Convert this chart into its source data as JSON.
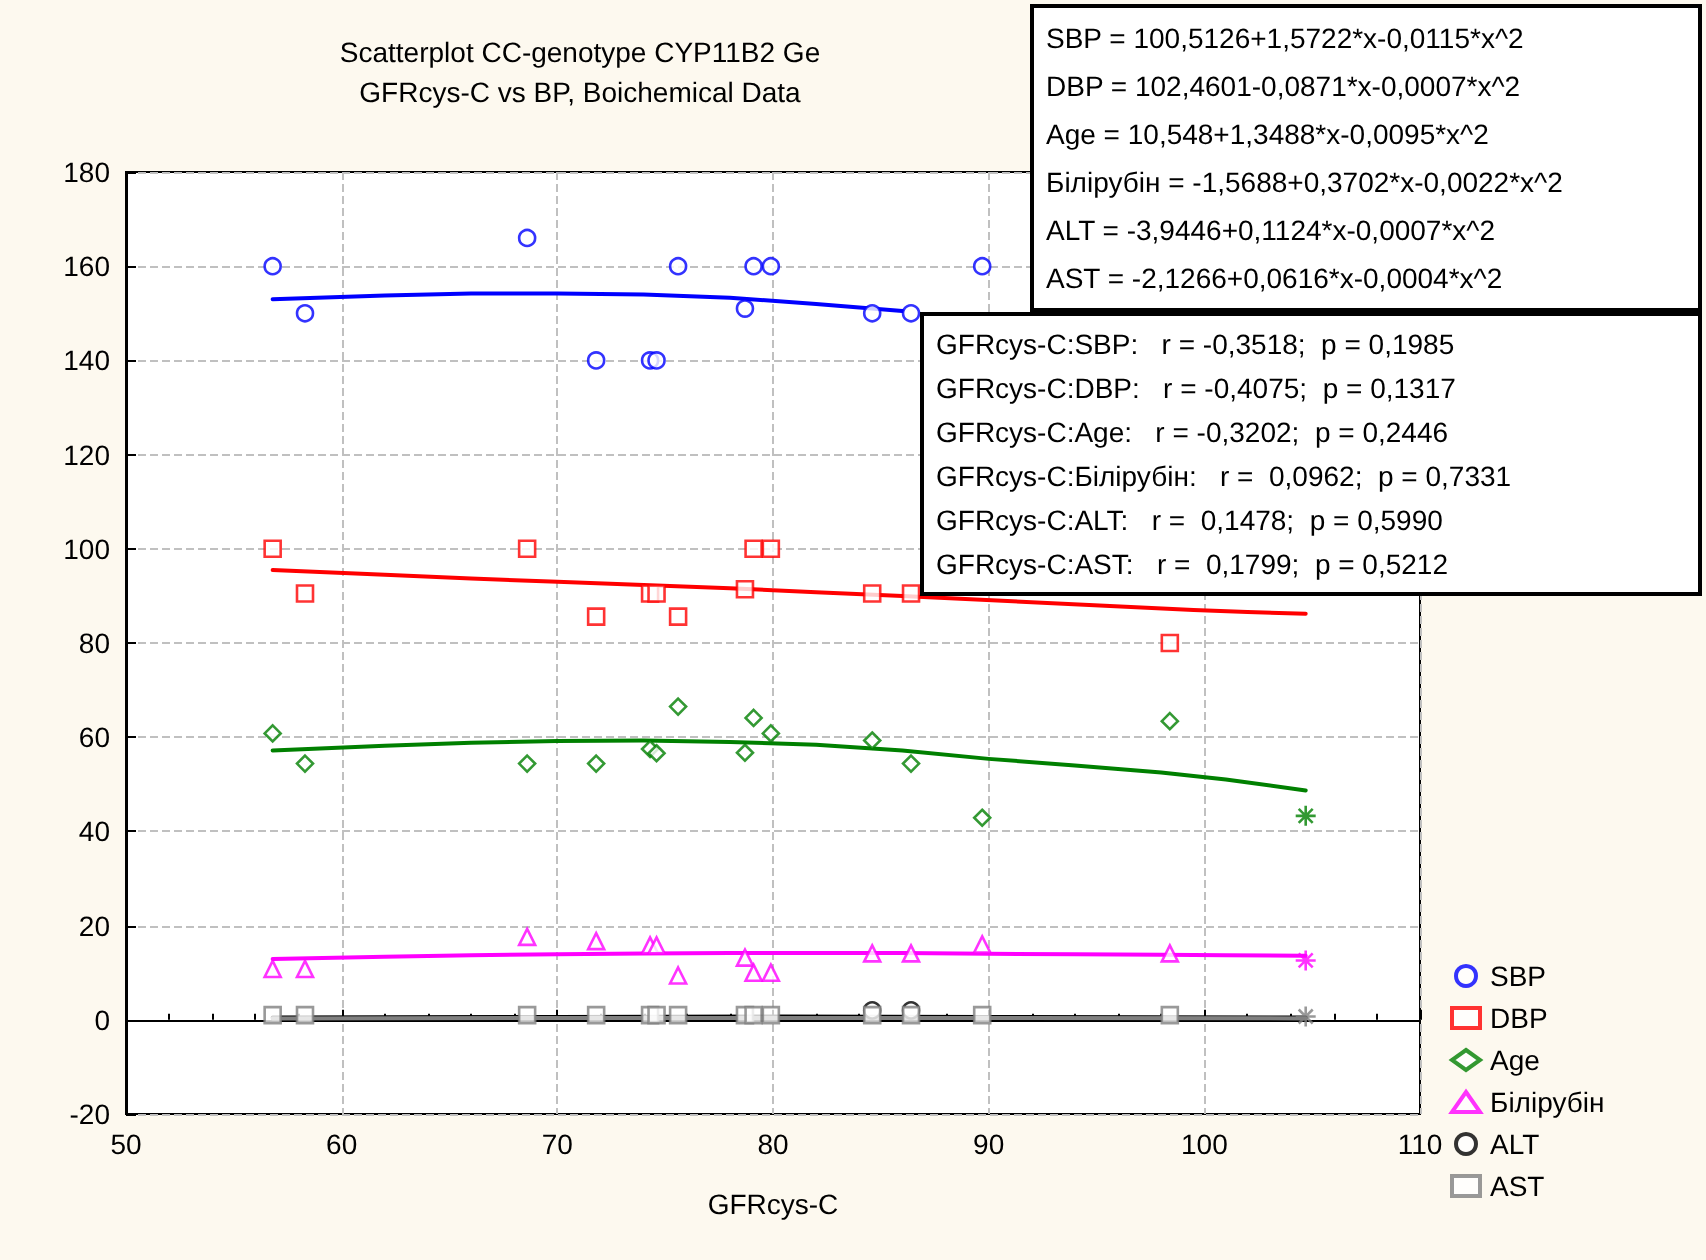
{
  "chart_data": {
    "type": "scatter",
    "title": "Scatterplot CC-genotype CYP11B2 Ge",
    "subtitle": "GFRcys-C vs BP, Boichemical Data",
    "xlabel": "GFRcys-C",
    "xlim": [
      50,
      110
    ],
    "xticks": [
      50,
      60,
      70,
      80,
      90,
      100,
      110
    ],
    "ylim": [
      -20,
      180
    ],
    "yticks": [
      -20,
      0,
      20,
      40,
      60,
      80,
      100,
      120,
      140,
      160,
      180
    ],
    "grid": true,
    "legend": "bottom right",
    "annotations": [
      "SBP = 100,5126+1,5722*x-0,0115*x^2",
      "DBP = 102,4601-0,0871*x-0,0007*x^2",
      "Age = 10,548+1,3488*x-0,0095*x^2",
      "Білірубін = -1,5688+0,3702*x-0,0022*x^2",
      "ALT = -3,9446+0,1124*x-0,0007*x^2",
      "AST = -2,1266+0,0616*x-0,0004*x^2",
      "GFRcys-C:SBP:   r = -0,3518;  p = 0,1985",
      "GFRcys-C:DBP:   r = -0,4075;  p = 0,1317",
      "GFRcys-C:Age:   r = -0,3202;  p = 0,2446",
      "GFRcys-C:Білірубін:   r =  0,0962;  p = 0,7331",
      "GFRcys-C:ALT:   r =  0,1478;  p = 0,5990",
      "GFRcys-C:AST:   r =  0,1799;  p = 0,5212"
    ],
    "series": [
      {
        "name": "SBP",
        "color": "#0000ff",
        "marker": "circle",
        "x": [
          56.8,
          58.3,
          68.6,
          71.8,
          74.3,
          74.6,
          75.6,
          78.7,
          79.1,
          79.9,
          84.6,
          86.4,
          89.7
        ],
        "values": [
          160,
          150,
          166,
          140,
          140,
          140,
          160,
          151,
          160,
          160,
          150,
          150,
          160
        ]
      },
      {
        "name": "DBP",
        "color": "#ff0000",
        "marker": "square",
        "x": [
          56.8,
          58.3,
          68.6,
          71.8,
          74.3,
          74.6,
          75.6,
          78.7,
          79.1,
          79.9,
          84.6,
          86.4,
          98.4
        ],
        "values": [
          100,
          90.5,
          100,
          85.6,
          90.5,
          90.5,
          85.6,
          91.4,
          100,
          100,
          90.5,
          90.5,
          80
        ]
      },
      {
        "name": "Age",
        "color": "#008000",
        "marker": "diamond",
        "x": [
          56.8,
          58.3,
          68.6,
          71.8,
          74.3,
          74.6,
          75.6,
          78.7,
          79.1,
          79.9,
          84.6,
          86.4,
          89.7,
          98.4
        ],
        "values": [
          60.8,
          54.4,
          54.4,
          54.4,
          57.5,
          56.6,
          66.5,
          56.7,
          64.1,
          60.8,
          59.3,
          54.4,
          42.9,
          63.4
        ]
      },
      {
        "name": "Білірубін",
        "color": "#ff00ff",
        "marker": "triangle",
        "x": [
          56.8,
          58.3,
          68.6,
          71.8,
          74.3,
          74.6,
          75.6,
          78.7,
          79.1,
          79.9,
          84.6,
          86.4,
          89.7,
          98.4
        ],
        "values": [
          10.8,
          10.8,
          17.6,
          16.7,
          15.8,
          15.8,
          9.4,
          13.2,
          10,
          10,
          14.1,
          14.1,
          16,
          14.1
        ]
      },
      {
        "name": "ALT",
        "color": "#000000",
        "marker": "circle",
        "x": [
          84.6,
          86.4
        ],
        "values": [
          2,
          2
        ]
      },
      {
        "name": "AST",
        "color": "#808080",
        "marker": "square",
        "x": [
          56.8,
          58.3,
          68.6,
          71.8,
          74.3,
          74.6,
          75.6,
          78.7,
          79.1,
          79.9,
          84.6,
          86.4,
          89.7,
          98.4
        ],
        "values": [
          1,
          1,
          1,
          1,
          1,
          1,
          1,
          1,
          1,
          1,
          1,
          1,
          1,
          1
        ]
      },
      {
        "type": "scatter",
        "color": "#008000",
        "marker": "cross",
        "x": [
          104.7
        ],
        "values": [
          43.3
        ]
      },
      {
        "type": "scatter",
        "color": "#ff00ff",
        "marker": "cross",
        "x": [
          104.7
        ],
        "values": [
          12.6
        ]
      },
      {
        "type": "scatter",
        "color": "#808080",
        "marker": "cross",
        "x": [
          104.7
        ],
        "values": [
          0.7
        ]
      },
      {
        "type": "line",
        "color": "#0000ff",
        "marker": "none",
        "x": [
          56.8,
          62,
          66,
          70,
          74,
          78,
          82,
          86
        ],
        "values": [
          153,
          153.8,
          154.2,
          154.2,
          154,
          153.3,
          152,
          150.5
        ]
      },
      {
        "type": "line",
        "color": "#ff0000",
        "marker": "none",
        "x": [
          56.8,
          62,
          66,
          70,
          74,
          78,
          82,
          86,
          99.5,
          102,
          104.7
        ],
        "values": [
          95.5,
          94.5,
          93.7,
          93,
          92.3,
          91.6,
          90.8,
          90,
          87,
          86.6,
          86.2
        ]
      },
      {
        "type": "line",
        "color": "#008000",
        "marker": "none",
        "x": [
          56.8,
          62,
          66,
          70,
          74,
          78,
          82,
          86,
          90,
          94,
          98,
          101,
          104.7
        ],
        "values": [
          57.2,
          58.2,
          58.8,
          59.2,
          59.3,
          59,
          58.4,
          57.2,
          55.4,
          54,
          52.5,
          51,
          48.7
        ]
      },
      {
        "type": "line",
        "color": "#ff00ff",
        "marker": "none",
        "x": [
          56.8,
          62,
          66,
          70,
          74,
          78,
          82,
          86,
          90,
          94,
          98,
          101,
          104.7
        ],
        "values": [
          12.9,
          13.4,
          13.7,
          13.9,
          14.1,
          14.2,
          14.2,
          14.2,
          14,
          13.9,
          13.8,
          13.7,
          13.6
        ]
      },
      {
        "type": "line",
        "color": "#000000",
        "marker": "none",
        "x": [
          56.8,
          70,
          80,
          90,
          104.7
        ],
        "values": [
          0.5,
          0.6,
          0.7,
          0.6,
          0.5
        ]
      },
      {
        "type": "line",
        "color": "#808080",
        "marker": "none",
        "x": [
          56.8,
          70,
          80,
          90,
          104.7
        ],
        "values": [
          0.3,
          0.4,
          0.4,
          0.4,
          0.3
        ]
      }
    ]
  }
}
